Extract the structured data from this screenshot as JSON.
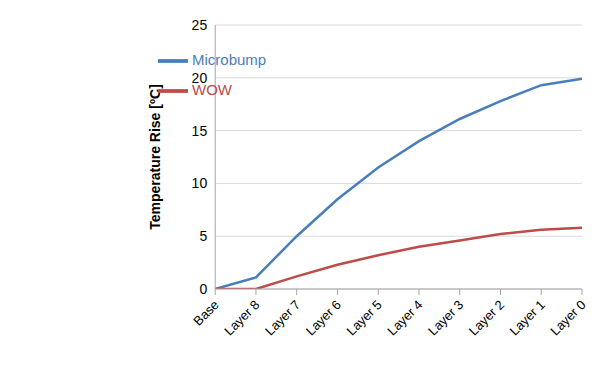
{
  "chart_data": {
    "type": "line",
    "y_label": "Temperature Rise [ºC]",
    "categories": [
      "Base",
      "Layer 8",
      "Layer 7",
      "Layer 6",
      "Layer 5",
      "Layer 4",
      "Layer 3",
      "Layer 2",
      "Layer 1",
      "Layer 0"
    ],
    "series": [
      {
        "name": "Microbump",
        "color": "#4a7ebb",
        "values": [
          0,
          1.1,
          5,
          8.5,
          11.5,
          14,
          16.1,
          17.8,
          19.3,
          19.9
        ]
      },
      {
        "name": "WOW",
        "color": "#be4b48",
        "values": [
          0,
          0,
          1.2,
          2.3,
          3.2,
          4.0,
          4.6,
          5.2,
          5.6,
          5.8
        ]
      }
    ],
    "ylim": [
      0,
      25
    ],
    "yticks": [
      0,
      5,
      10,
      15,
      20,
      25
    ],
    "grid": true,
    "legend": "upper left",
    "marker": "none",
    "line_style": "solid"
  }
}
